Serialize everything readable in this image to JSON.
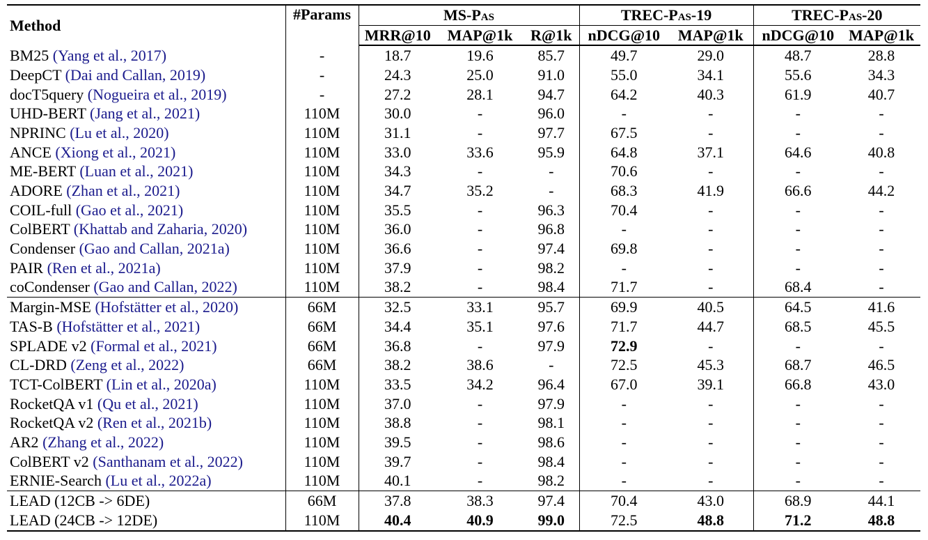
{
  "header": {
    "method": "Method",
    "params": "#Params",
    "groups": [
      {
        "label": "MS-Pas",
        "cols": [
          "MRR@10",
          "MAP@1k",
          "R@1k"
        ]
      },
      {
        "label": "TREC-Pas-19",
        "cols": [
          "nDCG@10",
          "MAP@1k"
        ]
      },
      {
        "label": "TREC-Pas-20",
        "cols": [
          "nDCG@10",
          "MAP@1k"
        ]
      }
    ]
  },
  "sections": [
    {
      "rows": [
        {
          "name": "BM25 ",
          "cite": "(Yang et al., 2017)",
          "params": "-",
          "v": [
            "18.7",
            "19.6",
            "85.7",
            "49.7",
            "29.0",
            "48.7",
            "28.8"
          ]
        },
        {
          "name": "DeepCT ",
          "cite": "(Dai and Callan, 2019)",
          "params": "-",
          "v": [
            "24.3",
            "25.0",
            "91.0",
            "55.0",
            "34.1",
            "55.6",
            "34.3"
          ]
        },
        {
          "name": "docT5query ",
          "cite": "(Nogueira et al., 2019)",
          "params": "-",
          "v": [
            "27.2",
            "28.1",
            "94.7",
            "64.2",
            "40.3",
            "61.9",
            "40.7"
          ]
        },
        {
          "name": "UHD-BERT ",
          "cite": "(Jang et al., 2021)",
          "params": "110M",
          "v": [
            "30.0",
            "-",
            "96.0",
            "-",
            "-",
            "-",
            "-"
          ]
        },
        {
          "name": "NPRINC ",
          "cite": "(Lu et al., 2020)",
          "params": "110M",
          "v": [
            "31.1",
            "-",
            "97.7",
            "67.5",
            "-",
            "-",
            "-"
          ]
        },
        {
          "name": "ANCE ",
          "cite": "(Xiong et al., 2021)",
          "params": "110M",
          "v": [
            "33.0",
            "33.6",
            "95.9",
            "64.8",
            "37.1",
            "64.6",
            "40.8"
          ]
        },
        {
          "name": "ME-BERT ",
          "cite": "(Luan et al., 2021)",
          "params": "110M",
          "v": [
            "34.3",
            "-",
            "-",
            "70.6",
            "-",
            "-",
            "-"
          ]
        },
        {
          "name": "ADORE ",
          "cite": "(Zhan et al., 2021)",
          "params": "110M",
          "v": [
            "34.7",
            "35.2",
            "-",
            "68.3",
            "41.9",
            "66.6",
            "44.2"
          ]
        },
        {
          "name": "COIL-full ",
          "cite": "(Gao et al., 2021)",
          "params": "110M",
          "v": [
            "35.5",
            "-",
            "96.3",
            "70.4",
            "-",
            "-",
            "-"
          ]
        },
        {
          "name": "ColBERT ",
          "cite": "(Khattab and Zaharia, 2020)",
          "params": "110M",
          "v": [
            "36.0",
            "-",
            "96.8",
            "-",
            "-",
            "-",
            "-"
          ]
        },
        {
          "name": "Condenser ",
          "cite": "(Gao and Callan, 2021a)",
          "params": "110M",
          "v": [
            "36.6",
            "-",
            "97.4",
            "69.8",
            "-",
            "-",
            "-"
          ]
        },
        {
          "name": "PAIR ",
          "cite": "(Ren et al., 2021a)",
          "params": "110M",
          "v": [
            "37.9",
            "-",
            "98.2",
            "-",
            "-",
            "-",
            "-"
          ]
        },
        {
          "name": "coCondenser ",
          "cite": "(Gao and Callan, 2022)",
          "params": "110M",
          "v": [
            "38.2",
            "-",
            "98.4",
            "71.7",
            "-",
            "68.4",
            "-"
          ]
        }
      ]
    },
    {
      "rows": [
        {
          "name": "Margin-MSE ",
          "cite": "(Hofstätter et al., 2020)",
          "params": "66M",
          "v": [
            "32.5",
            "33.1",
            "95.7",
            "69.9",
            "40.5",
            "64.5",
            "41.6"
          ]
        },
        {
          "name": "TAS-B ",
          "cite": "(Hofstätter et al., 2021)",
          "params": "66M",
          "v": [
            "34.4",
            "35.1",
            "97.6",
            "71.7",
            "44.7",
            "68.5",
            "45.5"
          ]
        },
        {
          "name": "SPLADE v2 ",
          "cite": "(Formal et al., 2021)",
          "params": "66M",
          "v": [
            "36.8",
            "-",
            "97.9",
            "72.9",
            "-",
            "-",
            "-"
          ],
          "bold": [
            3
          ]
        },
        {
          "name": "CL-DRD ",
          "cite": "(Zeng et al., 2022)",
          "params": "66M",
          "v": [
            "38.2",
            "38.6",
            "-",
            "72.5",
            "45.3",
            "68.7",
            "46.5"
          ]
        },
        {
          "name": "TCT-ColBERT ",
          "cite": "(Lin et al., 2020a)",
          "params": "110M",
          "v": [
            "33.5",
            "34.2",
            "96.4",
            "67.0",
            "39.1",
            "66.8",
            "43.0"
          ]
        },
        {
          "name": "RocketQA v1 ",
          "cite": "(Qu et al., 2021)",
          "params": "110M",
          "v": [
            "37.0",
            "-",
            "97.9",
            "-",
            "-",
            "-",
            "-"
          ]
        },
        {
          "name": "RocketQA v2 ",
          "cite": "(Ren et al., 2021b)",
          "params": "110M",
          "v": [
            "38.8",
            "-",
            "98.1",
            "-",
            "-",
            "-",
            "-"
          ]
        },
        {
          "name": "AR2 ",
          "cite": "(Zhang et al., 2022)",
          "params": "110M",
          "v": [
            "39.5",
            "-",
            "98.6",
            "-",
            "-",
            "-",
            "-"
          ]
        },
        {
          "name": "ColBERT v2 ",
          "cite": "(Santhanam et al., 2022)",
          "params": "110M",
          "v": [
            "39.7",
            "-",
            "98.4",
            "-",
            "-",
            "-",
            "-"
          ]
        },
        {
          "name": "ERNIE-Search ",
          "cite": "(Lu et al., 2022a)",
          "params": "110M",
          "v": [
            "40.1",
            "-",
            "98.2",
            "-",
            "-",
            "-",
            "-"
          ]
        }
      ]
    },
    {
      "rows": [
        {
          "name": "LEAD (12CB -> 6DE)",
          "cite": "",
          "params": "66M",
          "v": [
            "37.8",
            "38.3",
            "97.4",
            "70.4",
            "43.0",
            "68.9",
            "44.1"
          ]
        },
        {
          "name": "LEAD (24CB -> 12DE)",
          "cite": "",
          "params": "110M",
          "v": [
            "40.4",
            "40.9",
            "99.0",
            "72.5",
            "48.8",
            "71.2",
            "48.8"
          ],
          "bold": [
            0,
            1,
            2,
            4,
            5,
            6
          ]
        }
      ]
    }
  ]
}
